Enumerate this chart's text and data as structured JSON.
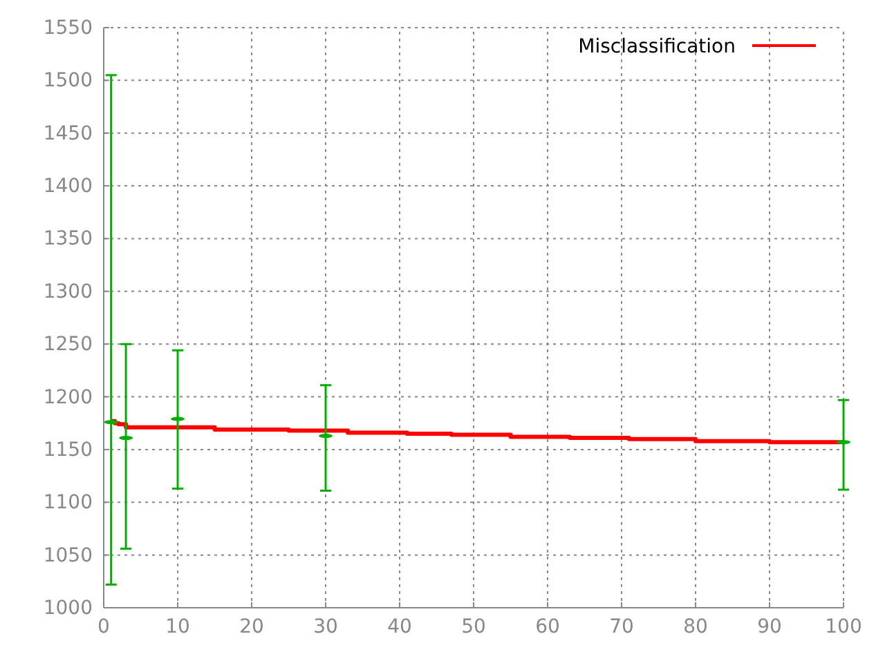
{
  "chart_data": {
    "type": "step",
    "xlim": [
      0,
      100
    ],
    "xticks": [
      0,
      10,
      20,
      30,
      40,
      50,
      60,
      70,
      80,
      90,
      100
    ],
    "ylim": [
      1000,
      1550
    ],
    "yticks": [
      1000,
      1050,
      1100,
      1150,
      1200,
      1250,
      1300,
      1350,
      1400,
      1450,
      1500,
      1550
    ],
    "grid": true,
    "legend": "top right",
    "series": [
      {
        "name": "Misclassification",
        "color": "#ff0000",
        "x": [
          1,
          1.5,
          2,
          3,
          15,
          25,
          33,
          41,
          47,
          55,
          63,
          71,
          80,
          90,
          100
        ],
        "values": [
          1177,
          1175,
          1174,
          1171,
          1169,
          1168,
          1166,
          1165,
          1164,
          1162,
          1161,
          1160,
          1158,
          1157,
          1157
        ]
      },
      {
        "color": "#00b000",
        "type": "scatter",
        "x": [
          1,
          3,
          10,
          30,
          100
        ],
        "values": [
          1176,
          1161,
          1179,
          1163,
          1157
        ],
        "errors": [
          [
            1022,
            1505
          ],
          [
            1056,
            1250
          ],
          [
            1113,
            1244
          ],
          [
            1111,
            1211
          ],
          [
            1112,
            1197
          ]
        ]
      }
    ]
  }
}
